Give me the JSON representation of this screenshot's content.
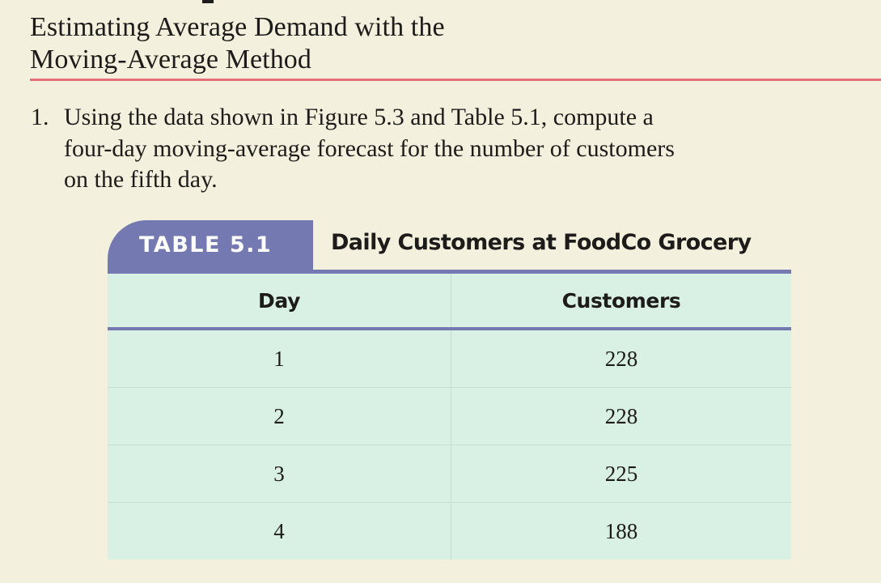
{
  "heading": {
    "line1": "Estimating Average Demand with the",
    "line2": "Moving-Average Method"
  },
  "problem": {
    "number": "1.",
    "lines": [
      "Using the data shown in Figure 5.3 and Table 5.1, compute a",
      "four-day moving-average forecast for the number of customers",
      "on the fifth day."
    ]
  },
  "table": {
    "label": "TABLE 5.1",
    "title": "Daily Customers at FoodCo Grocery",
    "columns": [
      "Day",
      "Customers"
    ],
    "rows": [
      {
        "day": "1",
        "customers": "228"
      },
      {
        "day": "2",
        "customers": "228"
      },
      {
        "day": "3",
        "customers": "225"
      },
      {
        "day": "4",
        "customers": "188"
      }
    ]
  },
  "colors": {
    "background": "#f3f1dd",
    "accent_rule": "#e56f78",
    "table_header_tab": "#7579b1",
    "table_body": "#d9f0e4"
  }
}
